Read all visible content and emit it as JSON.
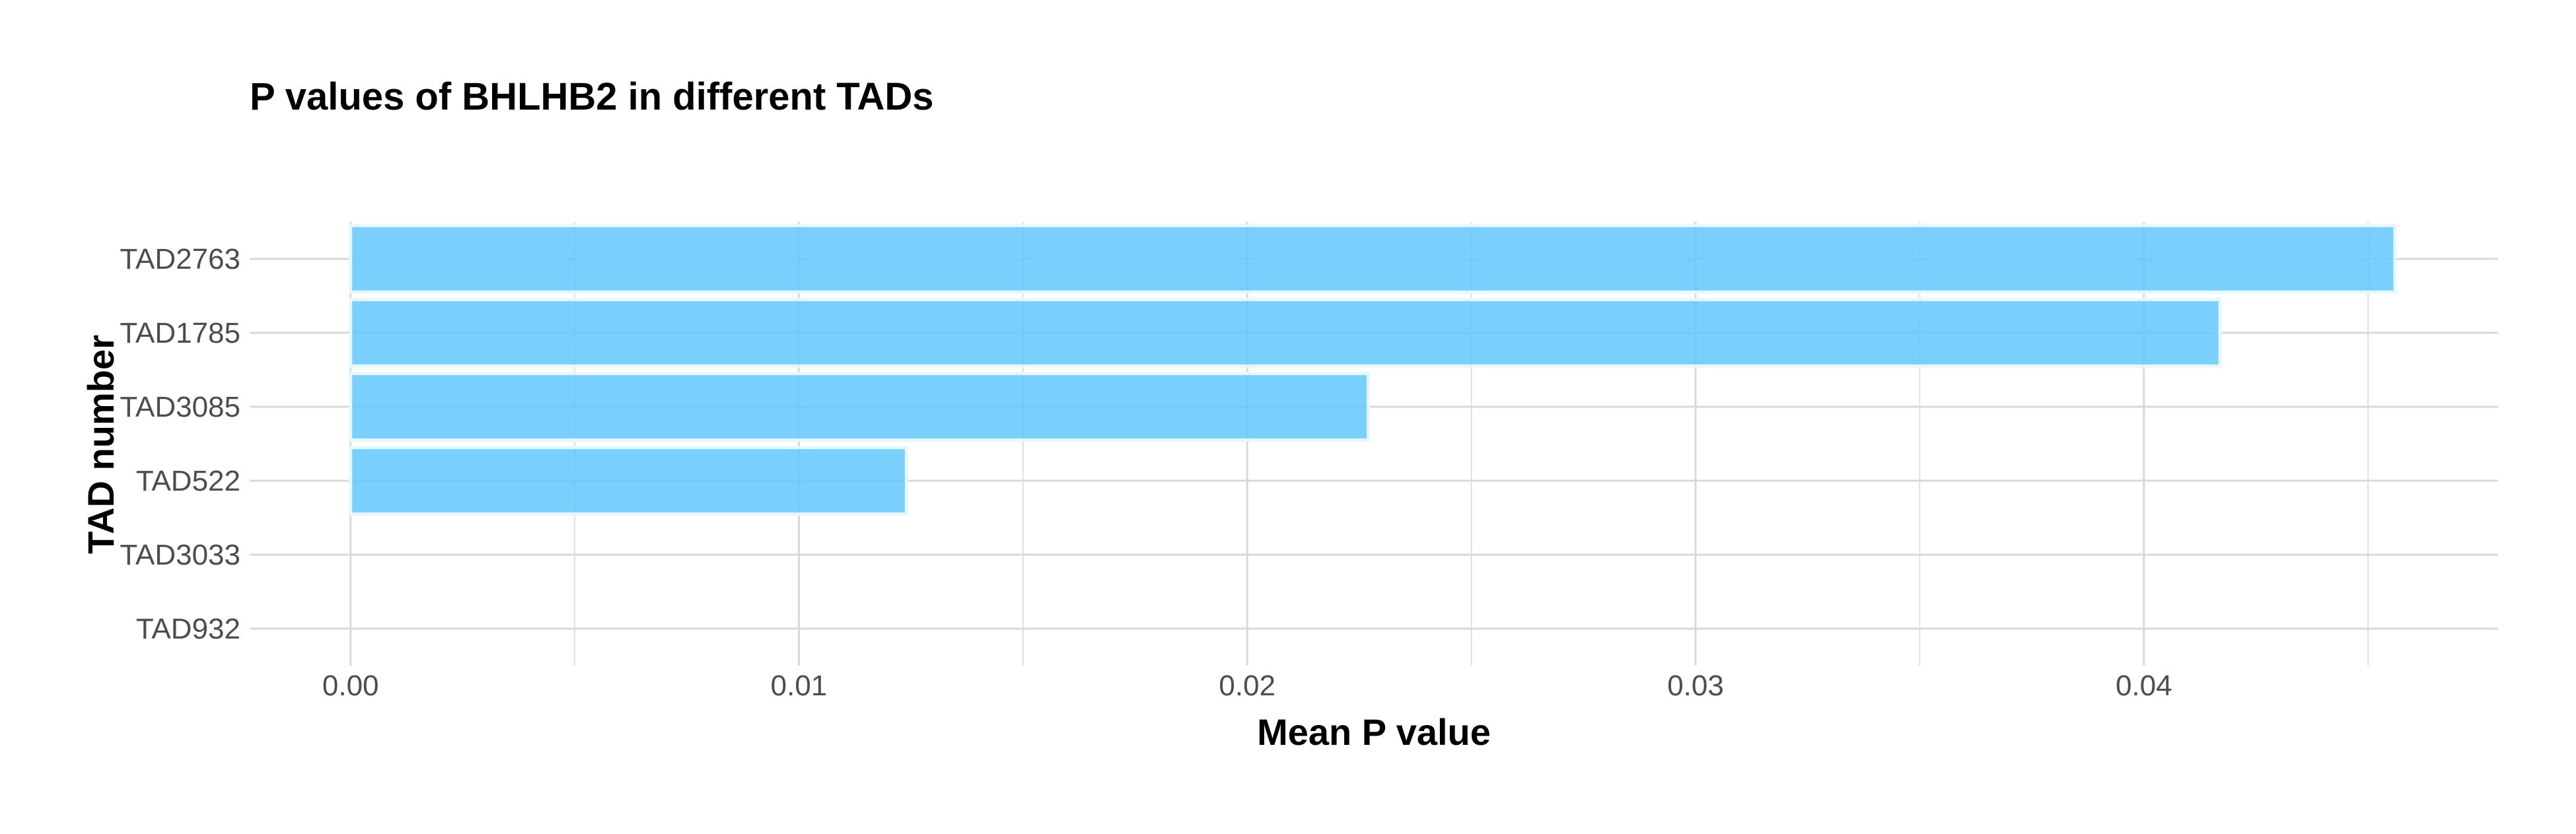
{
  "chart_data": {
    "type": "bar",
    "orientation": "horizontal",
    "title": "P values of BHLHB2 in different TADs",
    "xlabel": "Mean P value",
    "ylabel": "TAD number",
    "categories": [
      "TAD2763",
      "TAD1785",
      "TAD3085",
      "TAD522",
      "TAD3033",
      "TAD932"
    ],
    "values": [
      0.0456,
      0.0417,
      0.0227,
      0.0124,
      0,
      0
    ],
    "xlim": [
      -0.00225,
      0.0479
    ],
    "xticks": [
      "0.00",
      "0.01",
      "0.02",
      "0.03",
      "0.04"
    ],
    "xtick_values": [
      0,
      0.01,
      0.02,
      0.03,
      0.04
    ],
    "grid": true,
    "bar_color": "#62c8fc",
    "bar_outline_color": "#e8f6fe",
    "grid_color": "#d9d9d9"
  }
}
